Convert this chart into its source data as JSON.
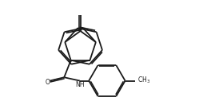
{
  "bg_color": "#ffffff",
  "line_color": "#1a1a1a",
  "line_width": 1.3,
  "figsize": [
    2.64,
    1.32
  ],
  "dpi": 100
}
